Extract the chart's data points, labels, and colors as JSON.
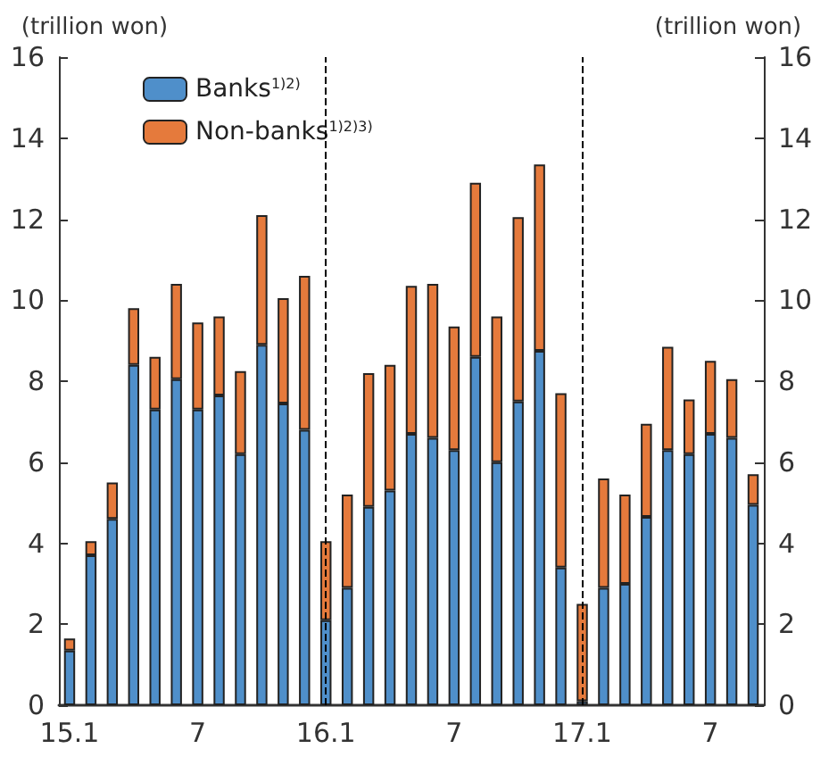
{
  "chart_data": {
    "type": "bar",
    "stacked": true,
    "ylabel": "(trillion won)",
    "y2label": "(trillion won)",
    "categories": [
      "15.1",
      null,
      null,
      null,
      null,
      null,
      "7",
      null,
      null,
      null,
      null,
      null,
      "16.1",
      null,
      null,
      null,
      null,
      null,
      "7",
      null,
      null,
      null,
      null,
      null,
      "17.1",
      null,
      null,
      null,
      null,
      null,
      "7",
      null,
      null
    ],
    "series": [
      {
        "name": "Banks$^{1)2)}$",
        "color": "#4f8fca",
        "values": [
          1.35,
          3.7,
          4.6,
          8.4,
          7.3,
          8.05,
          7.3,
          7.65,
          6.2,
          8.9,
          7.45,
          6.8,
          2.1,
          2.9,
          4.9,
          5.3,
          6.7,
          6.6,
          6.3,
          8.6,
          6.0,
          7.5,
          8.75,
          3.4,
          0.1,
          2.9,
          3.0,
          4.65,
          6.3,
          6.2,
          6.7,
          6.6,
          4.95
        ]
      },
      {
        "name": "Non-banks$^{1)2)3)}$",
        "color": "#e57a3c",
        "values": [
          0.3,
          0.35,
          0.9,
          1.4,
          1.3,
          2.35,
          2.15,
          1.95,
          2.05,
          3.2,
          2.6,
          3.8,
          1.95,
          2.3,
          3.3,
          3.1,
          3.65,
          3.8,
          3.05,
          4.3,
          3.6,
          4.55,
          4.6,
          4.3,
          2.4,
          2.7,
          2.2,
          2.3,
          2.55,
          1.35,
          1.8,
          1.45,
          0.75
        ]
      }
    ],
    "ylim": [
      0,
      16
    ],
    "yticks": [
      0,
      2,
      4,
      6,
      8,
      10,
      12,
      14,
      16
    ],
    "y2lim": [
      0,
      16
    ],
    "y2ticks": [
      0,
      2,
      4,
      6,
      8,
      10,
      12,
      14,
      16
    ],
    "ref_lines": [
      {
        "axis": "x",
        "value": "16.1",
        "line_style": "dashed",
        "color": "#000000"
      },
      {
        "axis": "x",
        "value": "17.1",
        "line_style": "dashed",
        "color": "#000000"
      }
    ],
    "grid": false,
    "legend": "top left"
  }
}
